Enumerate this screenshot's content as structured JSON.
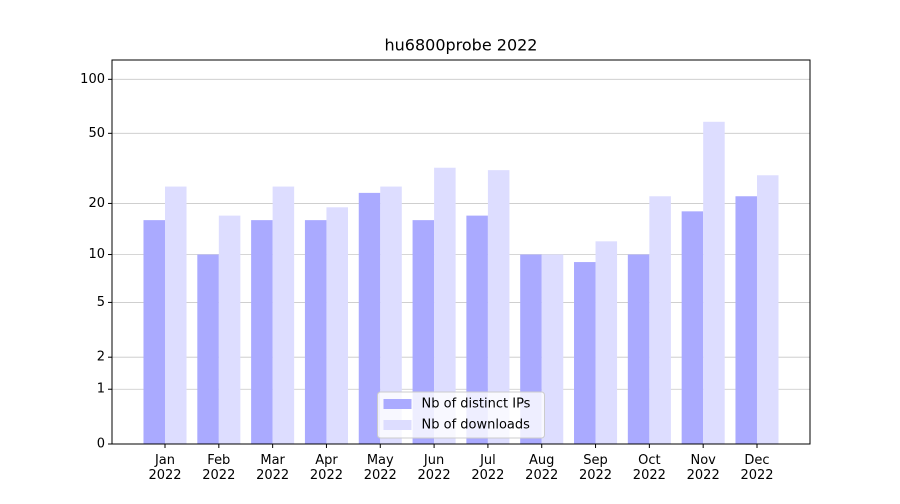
{
  "chart_data": {
    "type": "bar",
    "title": "hu6800probe 2022",
    "categories": [
      "Jan\n2022",
      "Feb\n2022",
      "Mar\n2022",
      "Apr\n2022",
      "May\n2022",
      "Jun\n2022",
      "Jul\n2022",
      "Aug\n2022",
      "Sep\n2022",
      "Oct\n2022",
      "Nov\n2022",
      "Dec\n2022"
    ],
    "series": [
      {
        "name": "Nb of distinct IPs",
        "color": "#aaaaff",
        "values": [
          16,
          10,
          16,
          16,
          23,
          16,
          17,
          10,
          9,
          10,
          18,
          22
        ]
      },
      {
        "name": "Nb of downloads",
        "color": "#ddddff",
        "values": [
          25,
          17,
          25,
          19,
          25,
          32,
          31,
          10,
          12,
          22,
          58,
          29
        ]
      }
    ],
    "yscale": "symlog",
    "ylim": [
      0,
      128
    ],
    "yticks": [
      0,
      1,
      2,
      5,
      10,
      20,
      50,
      100
    ],
    "grid": true,
    "legend": "lower center"
  }
}
